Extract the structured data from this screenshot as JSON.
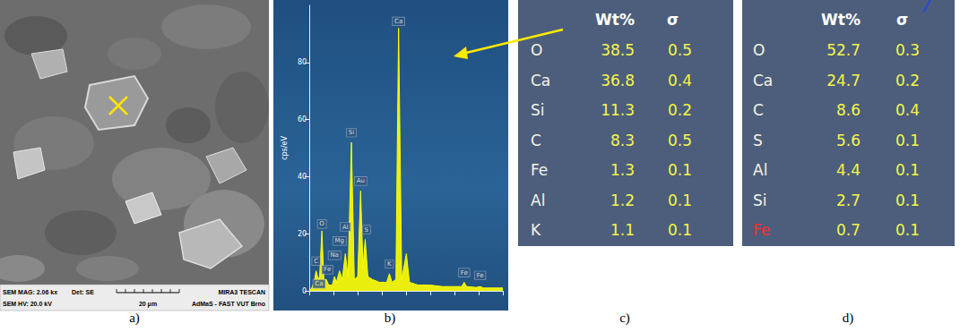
{
  "captions": [
    "a)",
    "b)",
    "c)",
    "d)"
  ],
  "sem_image": {
    "info_bar": {
      "magnification": "SEM MAG: 2.06 kx",
      "detector": "Det: SE",
      "instrument": "MIRA3 TESCAN",
      "voltage": "SEM HV: 20.0 kV",
      "scale_bar": "20 μm",
      "lab": "AdMaS - FAST VUT Brno"
    }
  },
  "chart_data": {
    "type": "line",
    "y_label": "cps/eV",
    "color": "#ffff00",
    "xlim": [
      0,
      8
    ],
    "xticks": [
      0,
      1,
      2,
      3,
      4,
      5,
      6,
      7,
      8
    ],
    "ylim": [
      0,
      100
    ],
    "yticks": [
      0,
      20,
      40,
      60,
      80
    ],
    "grid": false,
    "tick_labels": "y",
    "x": [
      0,
      0.1,
      0.2,
      0.28,
      0.34,
      0.42,
      0.52,
      0.6,
      0.7,
      0.8,
      0.95,
      1.04,
      1.12,
      1.25,
      1.36,
      1.49,
      1.6,
      1.74,
      1.86,
      2.0,
      2.12,
      2.22,
      2.31,
      2.42,
      2.6,
      2.9,
      3.2,
      3.31,
      3.42,
      3.58,
      3.69,
      3.82,
      4.01,
      4.14,
      4.5,
      5.0,
      5.5,
      6.0,
      6.3,
      6.4,
      6.5,
      6.9,
      7.06,
      7.2,
      7.6,
      8.0
    ],
    "values": [
      0,
      1,
      3,
      7,
      5,
      4,
      21,
      4,
      4,
      2,
      2,
      5,
      3,
      7,
      4,
      13,
      5,
      52,
      4,
      5,
      35,
      8,
      18,
      5,
      4,
      3,
      3,
      6,
      3,
      4,
      92,
      4,
      13,
      3,
      2,
      2,
      1.5,
      1.5,
      1.5,
      3,
      1.5,
      1.2,
      1.5,
      1,
      1,
      1
    ],
    "peak_labels": [
      {
        "label": "C",
        "x": 0.28,
        "y": 9
      },
      {
        "label": "Ca",
        "x": 0.4,
        "y": 1
      },
      {
        "label": "Fe",
        "x": 0.75,
        "y": 6
      },
      {
        "label": "O",
        "x": 0.52,
        "y": 22
      },
      {
        "label": "Na",
        "x": 1.04,
        "y": 11
      },
      {
        "label": "Mg",
        "x": 1.25,
        "y": 16
      },
      {
        "label": "Al",
        "x": 1.49,
        "y": 21
      },
      {
        "label": "Si",
        "x": 1.74,
        "y": 54
      },
      {
        "label": "Au",
        "x": 2.12,
        "y": 37
      },
      {
        "label": "S",
        "x": 2.36,
        "y": 20
      },
      {
        "label": "K",
        "x": 3.31,
        "y": 8
      },
      {
        "label": "Ca",
        "x": 3.69,
        "y": 93
      },
      {
        "label": "Fe",
        "x": 6.4,
        "y": 5
      },
      {
        "label": "Fe",
        "x": 7.06,
        "y": 4
      }
    ]
  },
  "tables": [
    {
      "header": [
        "Wt%",
        "σ"
      ],
      "rows": [
        {
          "element": "O",
          "wt": 38.5,
          "sigma": 0.5
        },
        {
          "element": "Ca",
          "wt": 36.8,
          "sigma": 0.4
        },
        {
          "element": "Si",
          "wt": 11.3,
          "sigma": 0.2
        },
        {
          "element": "C",
          "wt": 8.3,
          "sigma": 0.5
        },
        {
          "element": "Fe",
          "wt": 1.3,
          "sigma": 0.1
        },
        {
          "element": "Al",
          "wt": 1.2,
          "sigma": 0.1
        },
        {
          "element": "K",
          "wt": 1.1,
          "sigma": 0.1
        }
      ]
    },
    {
      "header": [
        "Wt%",
        "σ"
      ],
      "rows": [
        {
          "element": "O",
          "wt": 52.7,
          "sigma": 0.3
        },
        {
          "element": "Ca",
          "wt": 24.7,
          "sigma": 0.2
        },
        {
          "element": "C",
          "wt": 8.6,
          "sigma": 0.4
        },
        {
          "element": "S",
          "wt": 5.6,
          "sigma": 0.1
        },
        {
          "element": "Al",
          "wt": 4.4,
          "sigma": 0.1
        },
        {
          "element": "Si",
          "wt": 2.7,
          "sigma": 0.1
        },
        {
          "element": "Fe",
          "wt": 0.7,
          "sigma": 0.1,
          "element_color": "#ff2a2a"
        }
      ]
    }
  ]
}
